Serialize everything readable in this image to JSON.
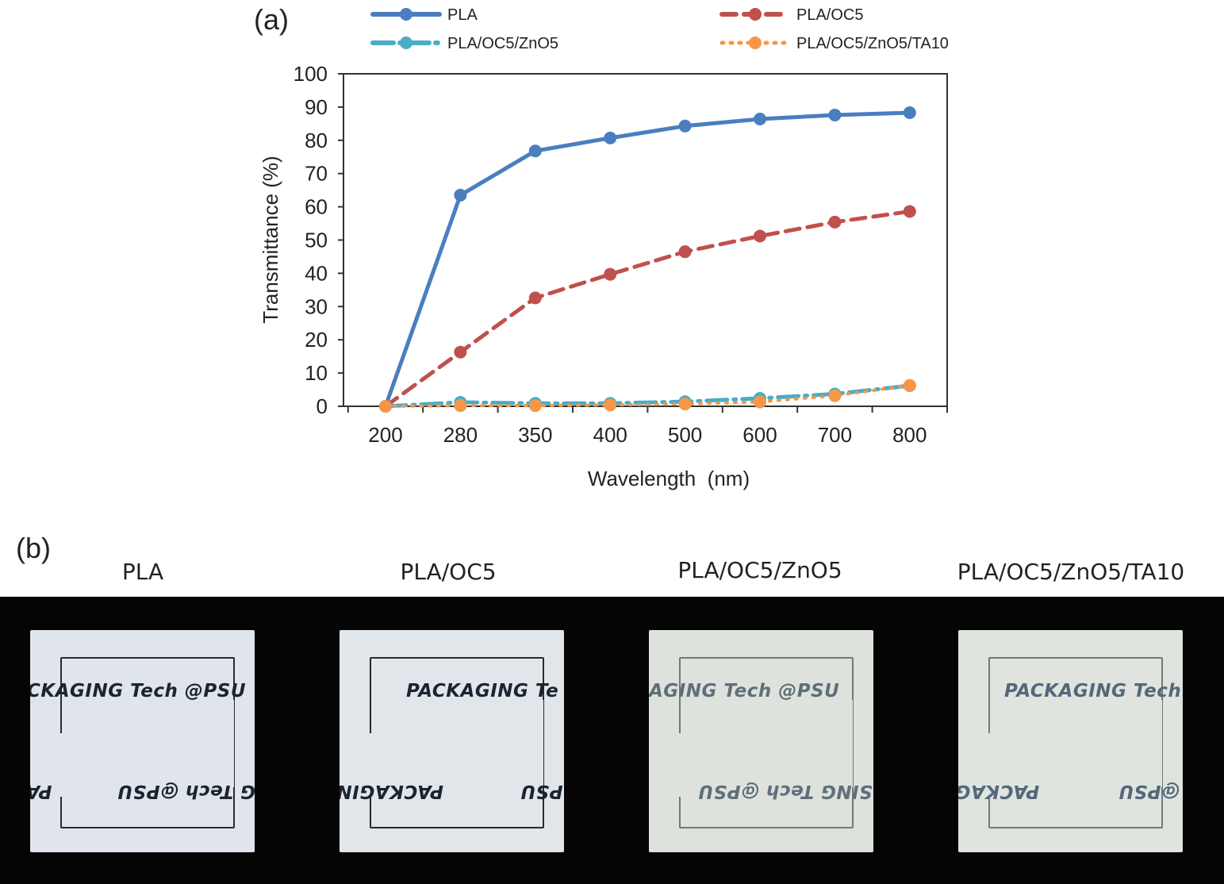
{
  "panel_a_label": "(a)",
  "panel_b_label": "(b)",
  "chart_data": {
    "type": "line",
    "title": "",
    "xlabel": "Wavelength  (nm)",
    "ylabel": "Transmittance (%)",
    "categories": [
      "200",
      "280",
      "350",
      "400",
      "500",
      "600",
      "700",
      "800"
    ],
    "ylim": [
      0,
      100
    ],
    "yticks": [
      0,
      10,
      20,
      30,
      40,
      50,
      60,
      70,
      80,
      90,
      100
    ],
    "grid": false,
    "legend_position": "top",
    "series": [
      {
        "name": "PLA",
        "color": "#4a7ebf",
        "dash": "solid",
        "values": [
          0,
          63.5,
          76.8,
          80.7,
          84.3,
          86.4,
          87.6,
          88.3
        ]
      },
      {
        "name": "PLA/OC5",
        "color": "#c0504d",
        "dash": "dashed",
        "values": [
          0,
          16.3,
          32.6,
          39.7,
          46.5,
          51.2,
          55.4,
          58.6
        ]
      },
      {
        "name": "PLA/OC5/ZnO5",
        "color": "#4bacc6",
        "dash": "dashdot",
        "values": [
          0,
          1.2,
          0.9,
          0.9,
          1.4,
          2.4,
          3.7,
          6.2
        ]
      },
      {
        "name": "PLA/OC5/ZnO5/TA10",
        "color": "#f79646",
        "dash": "dotted",
        "values": [
          0,
          0.2,
          0.2,
          0.4,
          0.7,
          1.3,
          3.2,
          6.3
        ]
      }
    ]
  },
  "photos": {
    "labels": [
      "PLA",
      "PLA/OC5",
      "PLA/OC5/ZnO5",
      "PLA/OC5/ZnO5/TA10"
    ],
    "samples": [
      {
        "top_text": "CKAGING Tech @PSU",
        "bottom_left": "PA",
        "bottom_right": "G Tech @PSU",
        "text_color": "#1b2430",
        "bg": "#dfe5ea"
      },
      {
        "top_text": "PACKAGING Te",
        "bottom_left": "PACKAGIN",
        "bottom_right": "PSU",
        "text_color": "#1b2430",
        "bg": "#e1e6ea"
      },
      {
        "top_text": "AGING Tech @PSU",
        "bottom_left": "",
        "bottom_right": "SING Tech @PSU",
        "text_color": "#5f6f7a",
        "bg": "#dde3dc"
      },
      {
        "top_text": "PACKAGING Tech",
        "bottom_left": "PACKAG",
        "bottom_right": "@PSU",
        "text_color": "#55677a",
        "bg": "#dfe4df"
      }
    ]
  }
}
